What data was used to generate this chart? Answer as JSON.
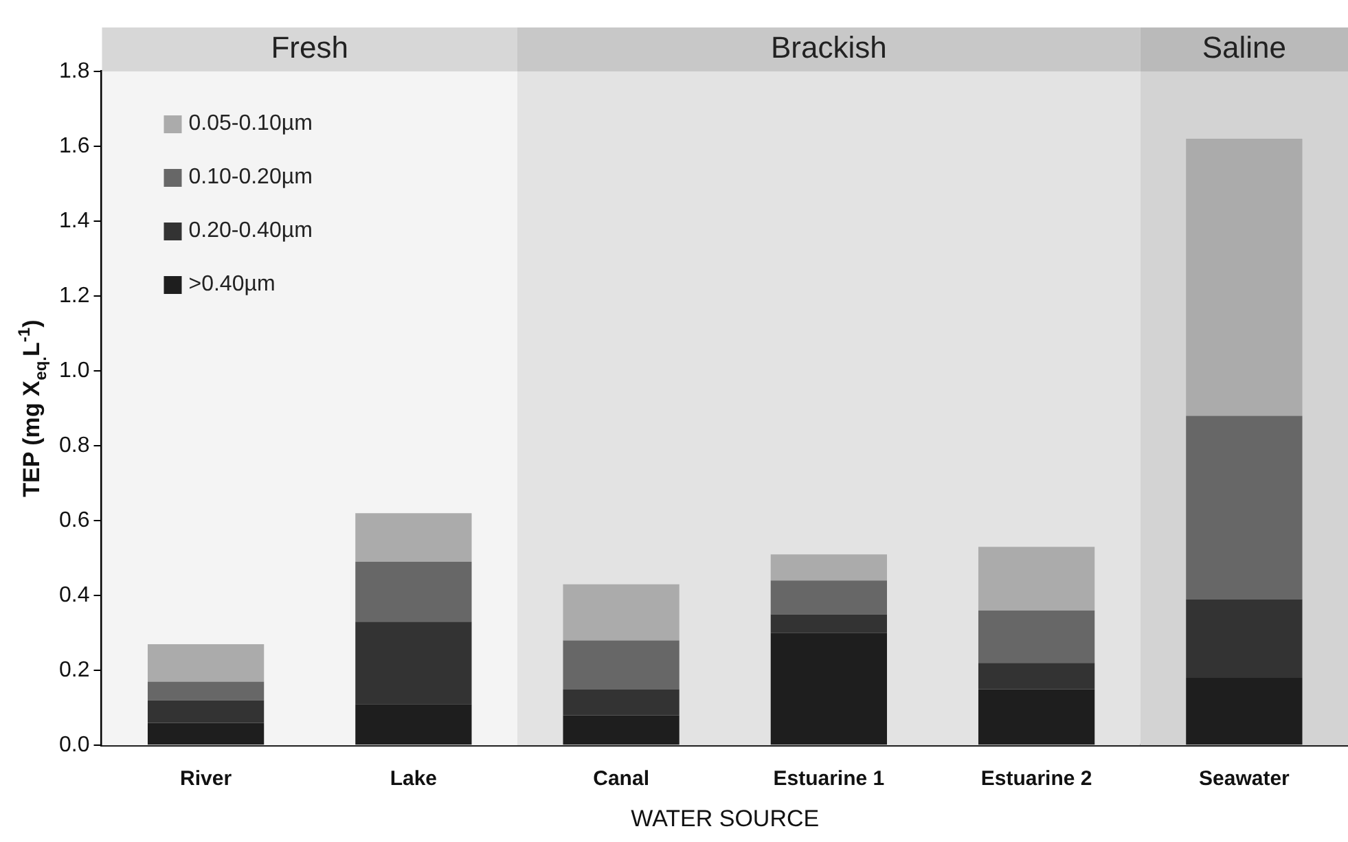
{
  "chart_data": {
    "type": "bar",
    "stacked": true,
    "xlabel": "WATER SOURCE",
    "ylabel": "TEP (mg X$_{eq.}$L$^{-1}$)",
    "categories": [
      "River",
      "Lake",
      "Canal",
      "Estuarine 1",
      "Estuarine 2",
      "Seawater"
    ],
    "series": [
      {
        "name": ">0.40µm",
        "color": "#1e1e1e",
        "values": [
          0.06,
          0.11,
          0.08,
          0.3,
          0.15,
          0.18
        ]
      },
      {
        "name": "0.20-0.40µm",
        "color": "#333333",
        "values": [
          0.06,
          0.22,
          0.07,
          0.05,
          0.07,
          0.21
        ]
      },
      {
        "name": "0.10-0.20µm",
        "color": "#676767",
        "values": [
          0.05,
          0.16,
          0.13,
          0.09,
          0.14,
          0.49
        ]
      },
      {
        "name": "0.05-0.10µm",
        "color": "#ababab",
        "values": [
          0.1,
          0.13,
          0.15,
          0.07,
          0.17,
          0.74
        ]
      }
    ],
    "ylim": [
      0,
      1.8
    ],
    "yticks": [
      {
        "value": 0,
        "label": "0.0"
      },
      {
        "value": 0.2,
        "label": "0.2"
      },
      {
        "value": 0.4,
        "label": "0.4"
      },
      {
        "value": 0.6,
        "label": "0.6"
      },
      {
        "value": 0.8,
        "label": "0.8"
      },
      {
        "value": 1.0,
        "label": "1.0"
      },
      {
        "value": 1.2,
        "label": "1.2"
      },
      {
        "value": 1.4,
        "label": "1.4"
      },
      {
        "value": 1.6,
        "label": "1.6"
      },
      {
        "value": 1.8,
        "label": "1.8"
      }
    ],
    "bands": [
      {
        "axis": "x",
        "from": "River",
        "to": "Lake",
        "label": "Fresh",
        "color": "#f4f4f4"
      },
      {
        "axis": "x",
        "from": "Canal",
        "to": "Estuarine 2",
        "label": "Brackish",
        "color": "#e3e3e3"
      },
      {
        "axis": "x",
        "from": "Seawater",
        "to": "Seawater",
        "label": "Saline",
        "color": "#d3d3d3"
      }
    ],
    "legend": "top left",
    "grid": false
  }
}
